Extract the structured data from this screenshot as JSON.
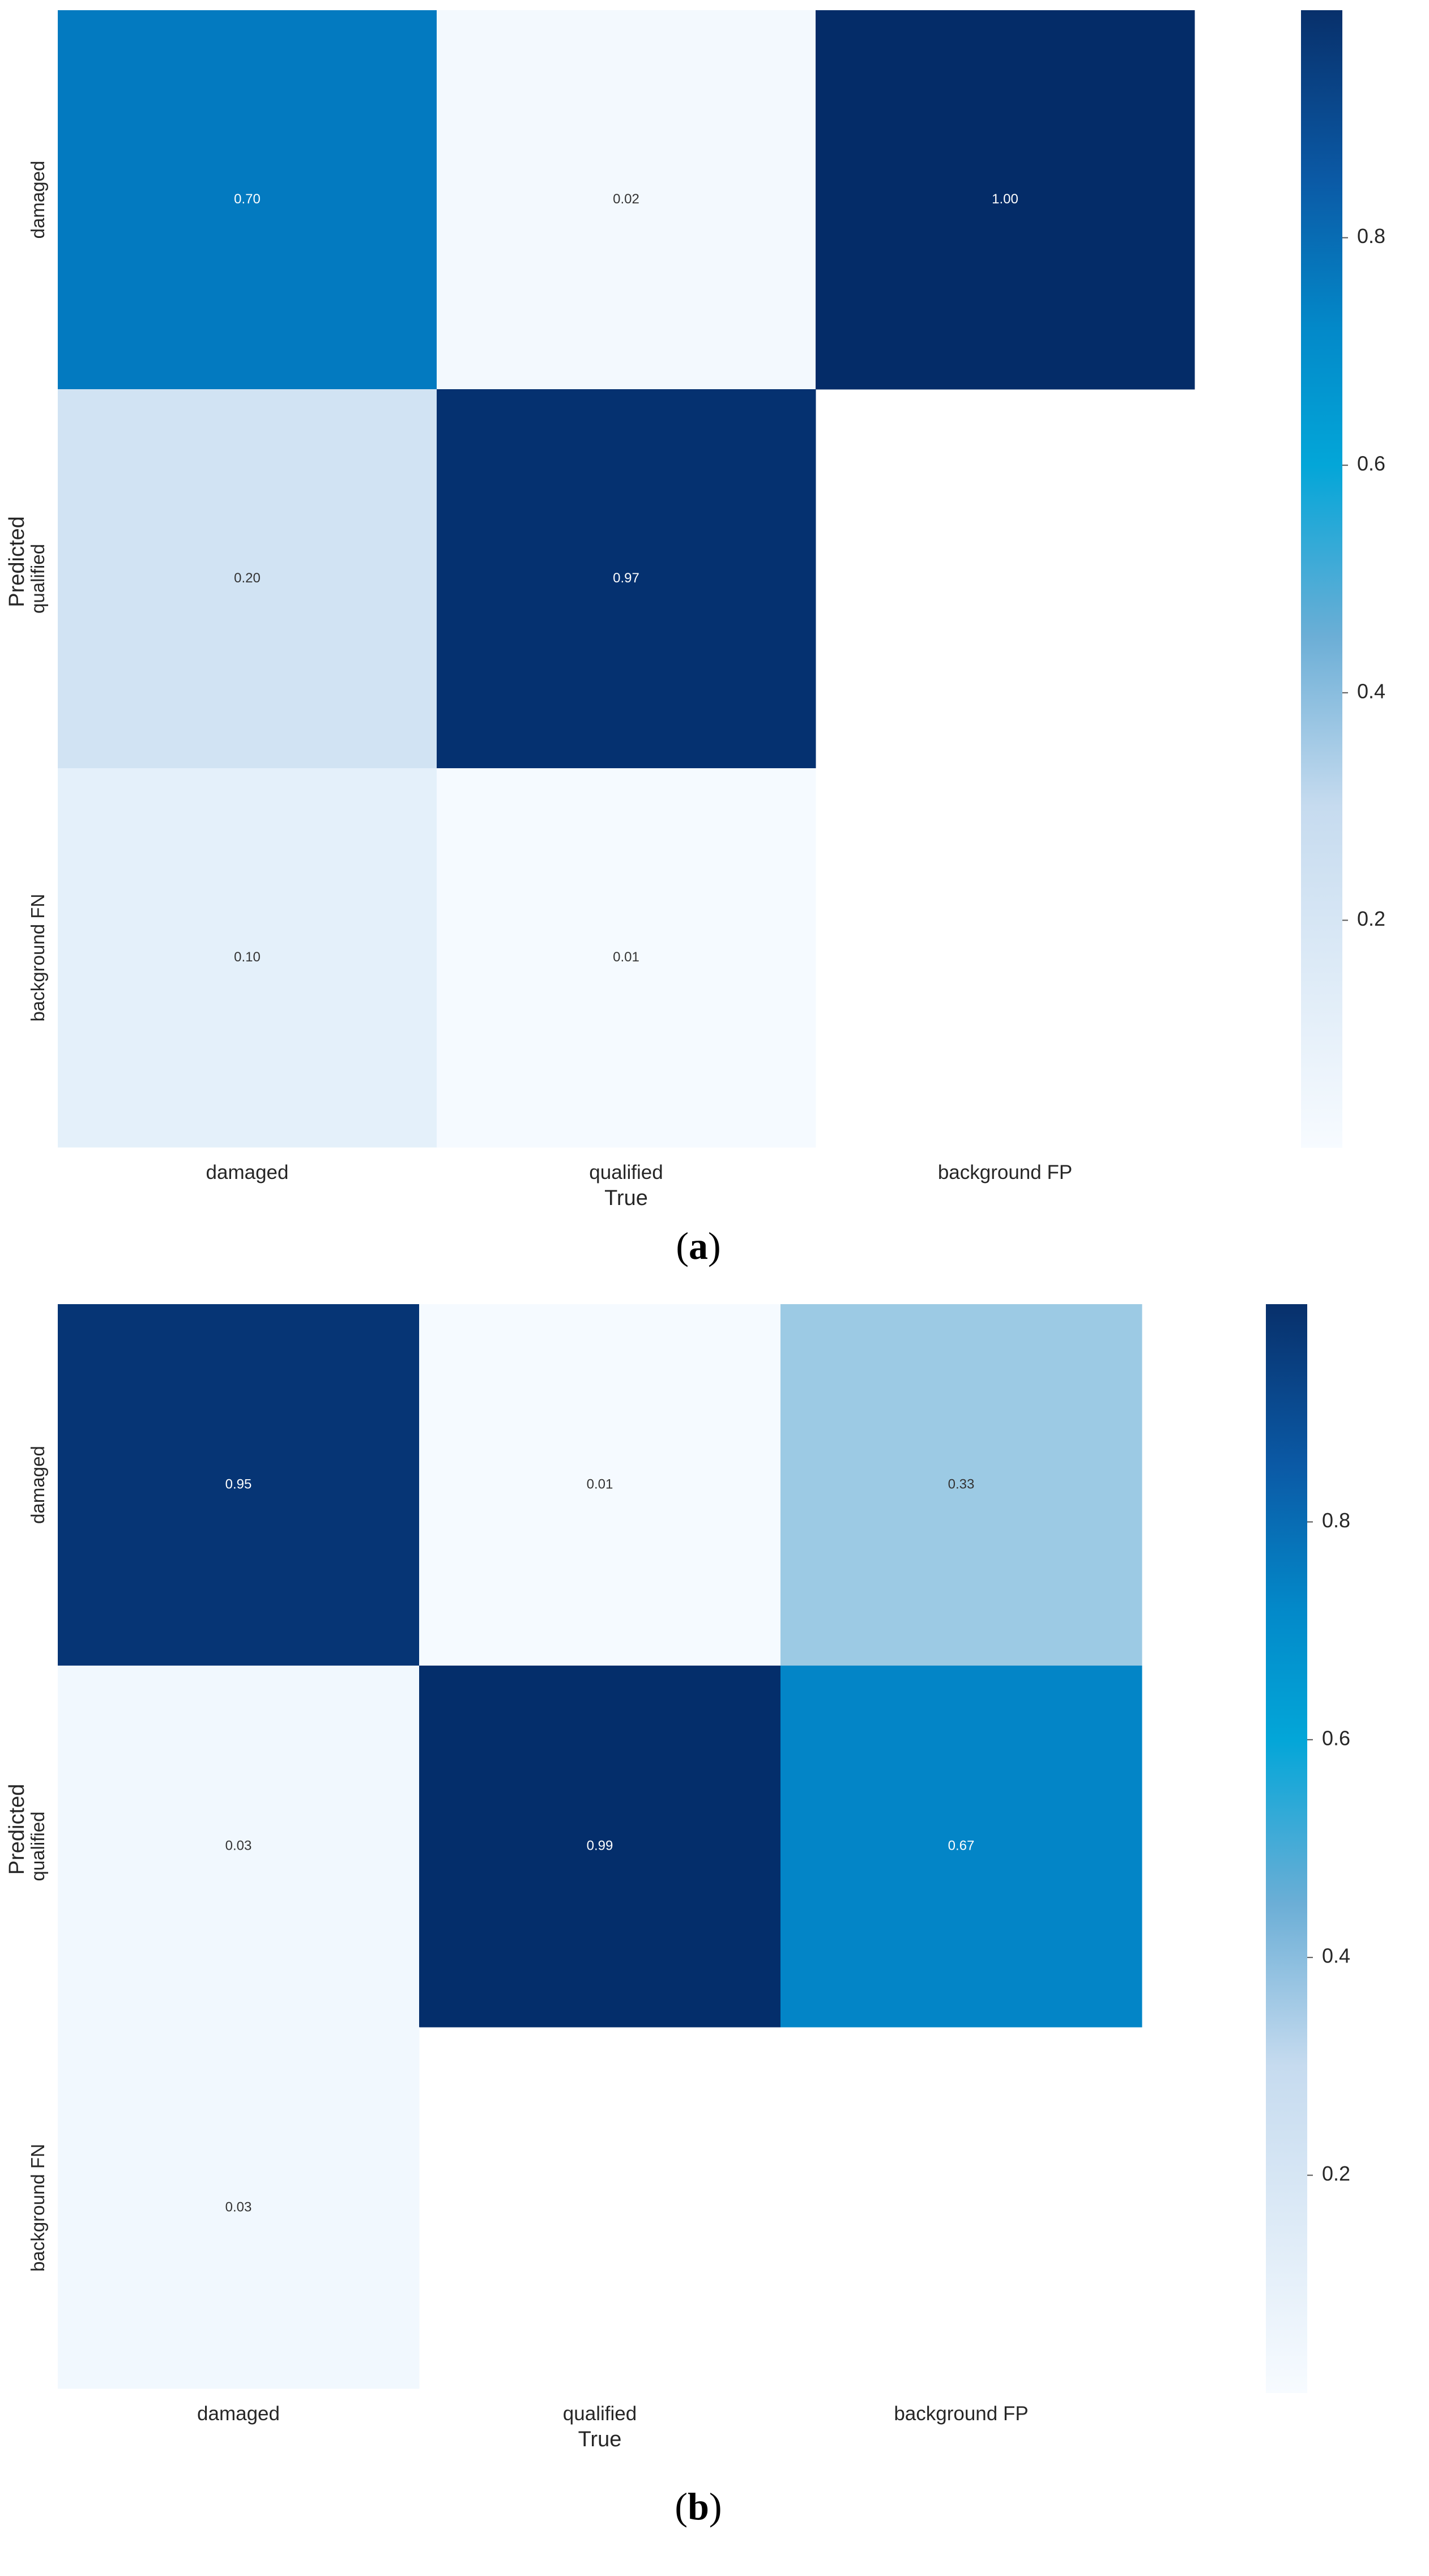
{
  "chart_data": [
    {
      "type": "heatmap",
      "panel_label": "a",
      "xlabel": "True",
      "ylabel": "Predicted",
      "x_categories": [
        "damaged",
        "qualified",
        "background FP"
      ],
      "y_categories": [
        "damaged",
        "qualified",
        "background FN"
      ],
      "cells": [
        [
          0.7,
          0.02,
          1.0
        ],
        [
          0.2,
          0.97,
          null
        ],
        [
          0.1,
          0.01,
          null
        ]
      ],
      "colorbar": {
        "range": [
          0,
          1.0
        ],
        "ticks": [
          0.2,
          0.4,
          0.6,
          0.8
        ],
        "tick_labels": [
          "0.2",
          "0.4",
          "0.6",
          "0.8"
        ],
        "colormap": "Blues"
      }
    },
    {
      "type": "heatmap",
      "panel_label": "b",
      "xlabel": "True",
      "ylabel": "Predicted",
      "x_categories": [
        "damaged",
        "qualified",
        "background FP"
      ],
      "y_categories": [
        "damaged",
        "qualified",
        "background FN"
      ],
      "cells": [
        [
          0.95,
          0.01,
          0.33
        ],
        [
          0.03,
          0.99,
          0.67
        ],
        [
          0.03,
          null,
          null
        ]
      ],
      "colorbar": {
        "range": [
          0,
          1.0
        ],
        "ticks": [
          0.2,
          0.4,
          0.6,
          0.8
        ],
        "tick_labels": [
          "0.2",
          "0.4",
          "0.6",
          "0.8"
        ],
        "colormap": "Blues"
      }
    }
  ]
}
